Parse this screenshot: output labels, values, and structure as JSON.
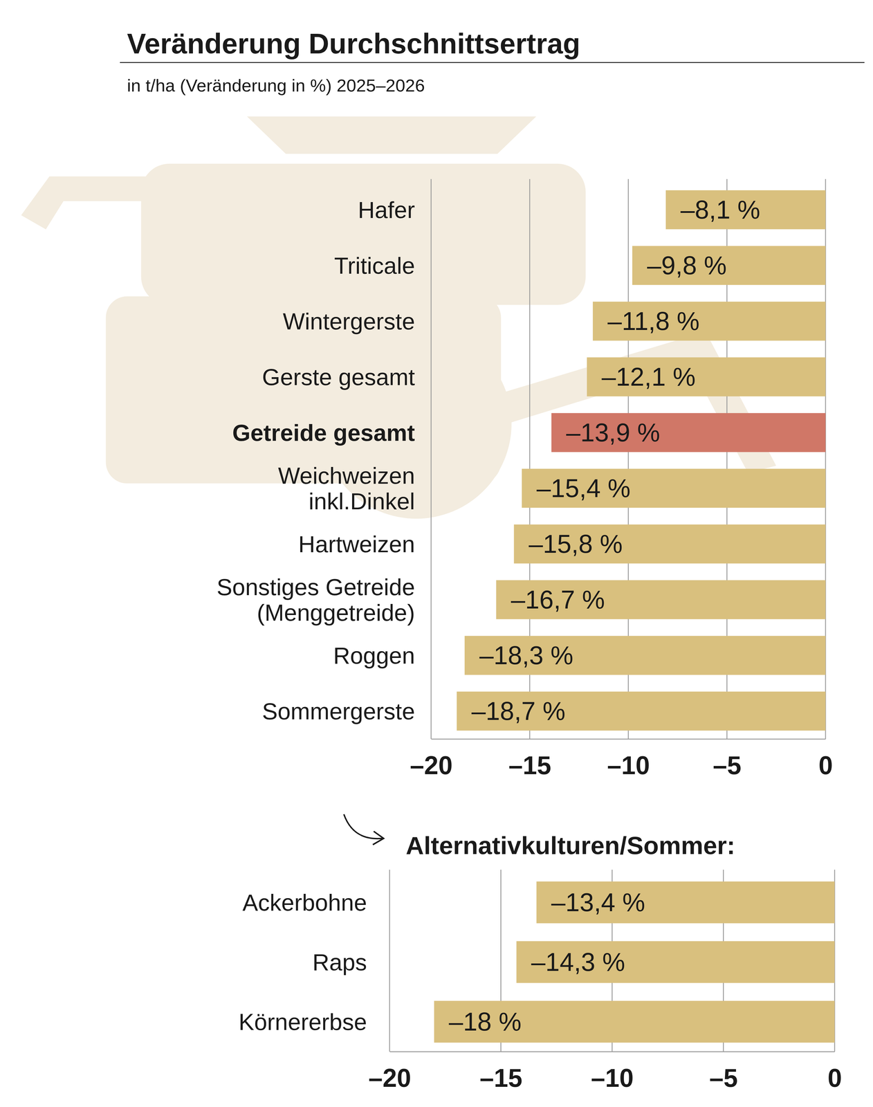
{
  "chart_data": [
    {
      "type": "bar",
      "orientation": "horizontal",
      "title": "Veränderung Durchschnittsertrag",
      "subtitle": "in t/ha (Veränderung in %) 2025–2026",
      "categories": [
        "Hafer",
        "Triticale",
        "Wintergerste",
        "Gerste gesamt",
        "Getreide gesamt",
        "Weichweizen inkl.Dinkel",
        "Hartweizen",
        "Sonstiges Getreide (Menggetreide)",
        "Roggen",
        "Sommergerste"
      ],
      "values": [
        -8.1,
        -9.8,
        -11.8,
        -12.1,
        -13.9,
        -15.4,
        -15.8,
        -16.7,
        -18.3,
        -18.7
      ],
      "value_labels": [
        "–8,1 %",
        "–9,8 %",
        "–11,8 %",
        "–12,1 %",
        "–13,9 %",
        "–15,4 %",
        "–15,8 %",
        "–16,7 %",
        "–18,3 %",
        "–18,7 %"
      ],
      "colors": [
        "#d9c07e",
        "#d9c07e",
        "#d9c07e",
        "#d9c07e",
        "#d07767",
        "#d9c07e",
        "#d9c07e",
        "#d9c07e",
        "#d9c07e",
        "#d9c07e"
      ],
      "data_labels": true,
      "grid": true,
      "xlim": [
        -20,
        0
      ],
      "xticks": [
        {
          "value": -20,
          "label": "–20"
        },
        {
          "value": -15,
          "label": "–15"
        },
        {
          "value": -10,
          "label": "–10"
        },
        {
          "value": -5,
          "label": "–5"
        },
        0
      ]
    },
    {
      "type": "bar",
      "orientation": "horizontal",
      "title": "Alternativkulturen/Sommer:",
      "categories": [
        "Ackerbohne",
        "Raps",
        "Körnererbse"
      ],
      "values": [
        -13.4,
        -14.3,
        -18
      ],
      "value_labels": [
        "–13,4 %",
        "–14,3 %",
        "–18 %"
      ],
      "color": "#d9c07e",
      "data_labels": true,
      "grid": true,
      "xlim": [
        -20,
        0
      ],
      "xticks": [
        {
          "value": -20,
          "label": "–20"
        },
        {
          "value": -15,
          "label": "–15"
        },
        {
          "value": -10,
          "label": "–10"
        },
        {
          "value": -5,
          "label": "–5"
        },
        0
      ]
    }
  ]
}
